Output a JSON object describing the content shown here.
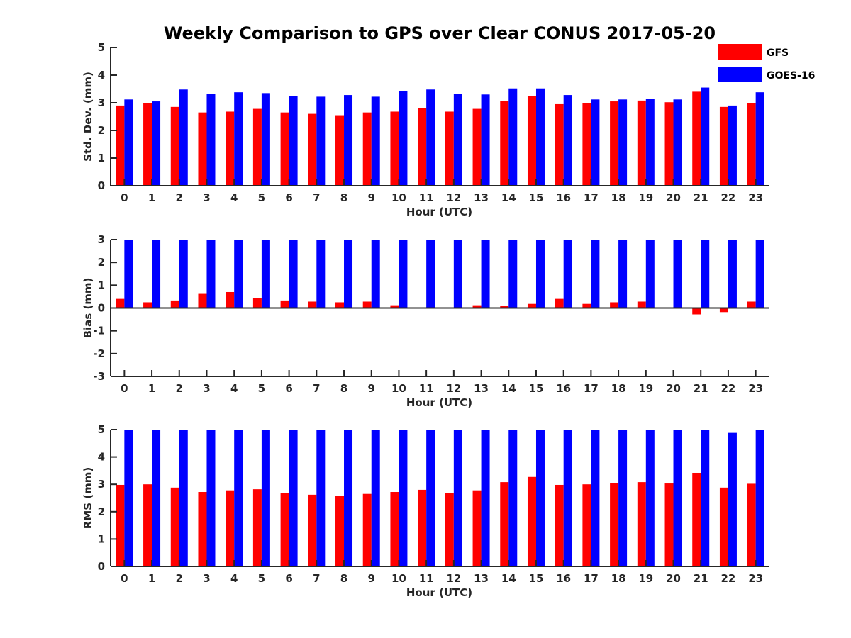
{
  "title": "Weekly Comparison to GPS over Clear CONUS 2017-05-20",
  "legend": {
    "placement": "top-right",
    "items": [
      {
        "label": "GFS",
        "color": "#ff0000"
      },
      {
        "label": "GOES-16",
        "color": "#0000ff"
      }
    ]
  },
  "chart_data": [
    {
      "type": "bar",
      "xlabel": "Hour (UTC)",
      "ylabel": "Std. Dev. (mm)",
      "ylim": [
        0,
        5
      ],
      "yticks": [
        "0",
        "1",
        "2",
        "3",
        "4",
        "5"
      ],
      "categories": [
        "0",
        "1",
        "2",
        "3",
        "4",
        "5",
        "6",
        "7",
        "8",
        "9",
        "10",
        "11",
        "12",
        "13",
        "14",
        "15",
        "16",
        "17",
        "18",
        "19",
        "20",
        "21",
        "22",
        "23"
      ],
      "series": [
        {
          "name": "GFS",
          "color": "#ff0000",
          "values": [
            2.9,
            3.0,
            2.85,
            2.65,
            2.68,
            2.78,
            2.65,
            2.6,
            2.55,
            2.65,
            2.68,
            2.8,
            2.68,
            2.78,
            3.07,
            3.25,
            2.95,
            3.0,
            3.05,
            3.08,
            3.02,
            3.4,
            2.85,
            3.0
          ]
        },
        {
          "name": "GOES-16",
          "color": "#0000ff",
          "values": [
            3.12,
            3.05,
            3.48,
            3.33,
            3.38,
            3.35,
            3.25,
            3.22,
            3.28,
            3.22,
            3.43,
            3.48,
            3.33,
            3.3,
            3.52,
            3.52,
            3.28,
            3.12,
            3.12,
            3.15,
            3.12,
            3.55,
            2.9,
            3.38
          ]
        }
      ]
    },
    {
      "type": "bar",
      "xlabel": "Hour (UTC)",
      "ylabel": "Bias (mm)",
      "ylim": [
        -3,
        3
      ],
      "yticks": [
        "-3",
        "-2",
        "-1",
        "0",
        "1",
        "2",
        "3"
      ],
      "categories": [
        "0",
        "1",
        "2",
        "3",
        "4",
        "5",
        "6",
        "7",
        "8",
        "9",
        "10",
        "11",
        "12",
        "13",
        "14",
        "15",
        "16",
        "17",
        "18",
        "19",
        "20",
        "21",
        "22",
        "23"
      ],
      "series": [
        {
          "name": "GFS",
          "color": "#ff0000",
          "values": [
            0.4,
            0.25,
            0.33,
            0.62,
            0.7,
            0.43,
            0.33,
            0.28,
            0.25,
            0.28,
            0.12,
            0.0,
            0.0,
            0.12,
            0.09,
            0.18,
            0.4,
            0.18,
            0.25,
            0.28,
            0.03,
            -0.28,
            -0.18,
            0.28
          ]
        },
        {
          "name": "GOES-16",
          "color": "#0000ff",
          "values": [
            3,
            3,
            3,
            3,
            3,
            3,
            3,
            3,
            3,
            3,
            3,
            3,
            3,
            3,
            3,
            3,
            3,
            3,
            3,
            3,
            3,
            3,
            3,
            3
          ]
        }
      ]
    },
    {
      "type": "bar",
      "xlabel": "Hour (UTC)",
      "ylabel": "RMS (mm)",
      "ylim": [
        0,
        5
      ],
      "yticks": [
        "0",
        "1",
        "2",
        "3",
        "4",
        "5"
      ],
      "categories": [
        "0",
        "1",
        "2",
        "3",
        "4",
        "5",
        "6",
        "7",
        "8",
        "9",
        "10",
        "11",
        "12",
        "13",
        "14",
        "15",
        "16",
        "17",
        "18",
        "19",
        "20",
        "21",
        "22",
        "23"
      ],
      "series": [
        {
          "name": "GFS",
          "color": "#ff0000",
          "values": [
            2.98,
            3.0,
            2.88,
            2.72,
            2.78,
            2.82,
            2.68,
            2.62,
            2.58,
            2.65,
            2.72,
            2.8,
            2.68,
            2.78,
            3.08,
            3.27,
            2.98,
            3.0,
            3.05,
            3.08,
            3.03,
            3.42,
            2.88,
            3.02
          ]
        },
        {
          "name": "GOES-16",
          "color": "#0000ff",
          "values": [
            5,
            5,
            5,
            5,
            5,
            5,
            5,
            5,
            5,
            5,
            5,
            5,
            5,
            5,
            5,
            5,
            5,
            5,
            5,
            5,
            5,
            5,
            4.88,
            5
          ]
        }
      ]
    }
  ]
}
